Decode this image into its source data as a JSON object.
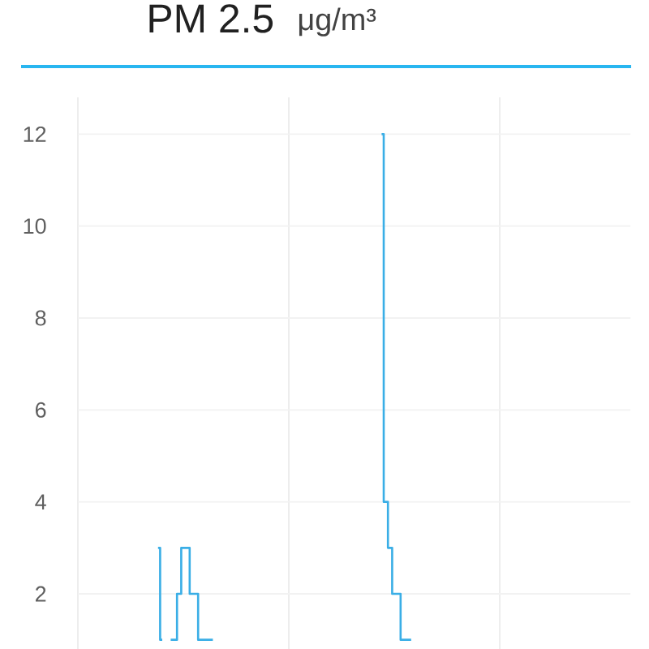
{
  "chart_data": {
    "type": "step",
    "title": "PM 2.5",
    "ylabel": "μg/m³",
    "categories": [
      null,
      null,
      null,
      null,
      null,
      null,
      null,
      null,
      null,
      null,
      null,
      null,
      null,
      null,
      null,
      null,
      null,
      null,
      null,
      null,
      null,
      null,
      null,
      null,
      null,
      null,
      null,
      null,
      null,
      null,
      null,
      null,
      null,
      null,
      null,
      null,
      null,
      null,
      null,
      null,
      null,
      null,
      null,
      null,
      null,
      null,
      null,
      null,
      null,
      null,
      null,
      null,
      null,
      null,
      null,
      null,
      null,
      null,
      null,
      null,
      null,
      null,
      null,
      null,
      null,
      null,
      null,
      null,
      null,
      null,
      null,
      null,
      null,
      null,
      null,
      null,
      null,
      null,
      null,
      null,
      null,
      null,
      null,
      null,
      null,
      null,
      null,
      null,
      null,
      null,
      null,
      null,
      null,
      null,
      null,
      null,
      null,
      null,
      null,
      null,
      null,
      null,
      null,
      null,
      null,
      null,
      null,
      null,
      null,
      null,
      null,
      null,
      null,
      null,
      null,
      null,
      null,
      null,
      null,
      null,
      null,
      null,
      null,
      null,
      null,
      null,
      null,
      null,
      null,
      null,
      null,
      null
    ],
    "values": [
      null,
      null,
      null,
      null,
      null,
      null,
      null,
      null,
      null,
      null,
      null,
      null,
      null,
      null,
      null,
      null,
      null,
      null,
      null,
      3,
      1,
      null,
      1,
      1,
      2,
      3,
      3,
      2,
      2,
      1,
      1,
      1,
      1,
      null,
      null,
      null,
      null,
      null,
      null,
      null,
      null,
      null,
      null,
      null,
      null,
      null,
      null,
      null,
      null,
      null,
      null,
      null,
      null,
      null,
      null,
      null,
      null,
      null,
      null,
      null,
      null,
      null,
      null,
      null,
      null,
      null,
      null,
      null,
      null,
      null,
      null,
      null,
      12,
      4,
      3,
      2,
      2,
      1,
      1,
      1,
      null,
      null,
      null,
      null,
      null,
      null,
      null,
      null,
      null,
      null,
      null,
      null,
      null,
      null,
      null,
      null,
      null,
      null,
      null,
      null,
      null,
      null,
      null,
      null,
      null,
      null,
      null,
      null,
      null,
      null,
      null,
      null,
      null,
      null,
      null,
      null,
      null,
      null,
      null,
      null,
      null,
      null,
      null,
      null,
      null,
      null,
      null,
      null,
      null,
      null,
      null,
      null
    ],
    "color": "#3aaee6",
    "ylim": [
      0.8,
      12.8
    ],
    "yticks": [
      2,
      4,
      6,
      8,
      10,
      12
    ],
    "grid": true,
    "tick_labels": "y"
  }
}
